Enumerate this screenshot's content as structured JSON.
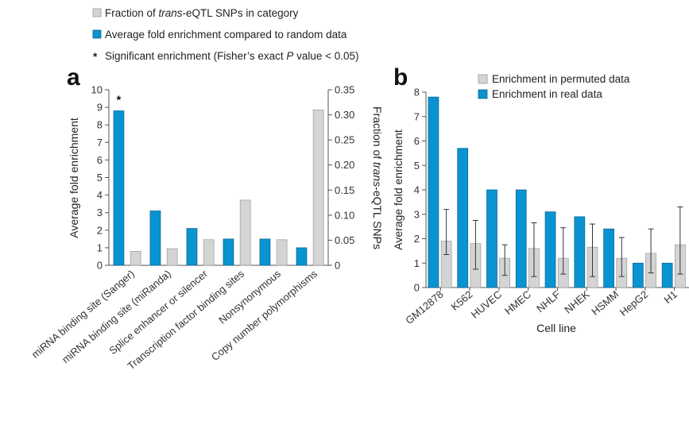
{
  "colors": {
    "gray": "#d4d4d4",
    "gray_stroke": "#9a9a9a",
    "blue": "#0a93d1",
    "blue_stroke": "#0b5f8e",
    "axis": "#555555"
  },
  "top_legend": {
    "gray_label_pre": "Fraction of ",
    "gray_label_italic": "trans",
    "gray_label_post": "-eQTL SNPs in category",
    "blue_label": "Average fold enrichment compared to random data",
    "star_symbol": "*",
    "star_label_pre": "Significant enrichment (Fisher’s exact ",
    "star_label_italic": "P",
    "star_label_post": " value < 0.05)"
  },
  "chart_data": [
    {
      "panel": "a",
      "type": "bar",
      "categories": [
        "miRNA binding site (Sanger)",
        "miRNA binding site (miRanda)",
        "Splice enhancer or silencer",
        "Transcription factor binding sites",
        "Nonsynonymous",
        "Copy number polymorphisms"
      ],
      "ylabel": "Average fold enrichment",
      "ylim": [
        0,
        10
      ],
      "yticks": [
        "0",
        "1",
        "2",
        "3",
        "4",
        "5",
        "6",
        "7",
        "8",
        "9",
        "10"
      ],
      "y2label_pre": "Fraction of ",
      "y2label_italic": "trans",
      "y2label_post": "-eQTL SNPs",
      "y2lim": [
        0,
        0.35
      ],
      "y2ticks": [
        "0",
        "0.05",
        "0.10",
        "0.15",
        "0.20",
        "0.25",
        "0.30",
        "0.35"
      ],
      "series": [
        {
          "values": [
            8.8,
            3.1,
            2.1,
            1.5,
            1.5,
            1.0
          ],
          "axis": "left"
        },
        {
          "values": [
            0.028,
            0.033,
            0.051,
            0.13,
            0.051,
            0.31
          ],
          "axis": "right"
        }
      ],
      "annotations": [
        {
          "category": "miRNA binding site (Sanger)",
          "text": "*"
        }
      ]
    },
    {
      "panel": "b",
      "type": "bar",
      "categories": [
        "GM12878",
        "K562",
        "HUVEC",
        "HMEC",
        "NHLF",
        "NHEK",
        "HSMM",
        "HepG2",
        "H1"
      ],
      "xlabel": "Cell line",
      "ylabel": "Average fold enrichment",
      "ylim": [
        0,
        8
      ],
      "yticks": [
        "0",
        "1",
        "2",
        "3",
        "4",
        "5",
        "6",
        "7",
        "8"
      ],
      "legend_position": "top",
      "series": [
        {
          "name": "Enrichment in permuted data",
          "values": [
            1.9,
            1.8,
            1.2,
            1.6,
            1.2,
            1.65,
            1.2,
            1.4,
            1.75
          ],
          "error_low": [
            1.35,
            0.75,
            0.5,
            0.45,
            0.55,
            0.45,
            0.45,
            0.6,
            0.55
          ],
          "error_high": [
            3.2,
            2.75,
            1.75,
            2.65,
            2.45,
            2.6,
            2.05,
            2.4,
            3.3
          ]
        },
        {
          "name": "Enrichment in real data",
          "values": [
            7.8,
            5.7,
            4.0,
            4.0,
            3.1,
            2.9,
            2.4,
            1.0,
            1.0
          ]
        }
      ]
    }
  ]
}
